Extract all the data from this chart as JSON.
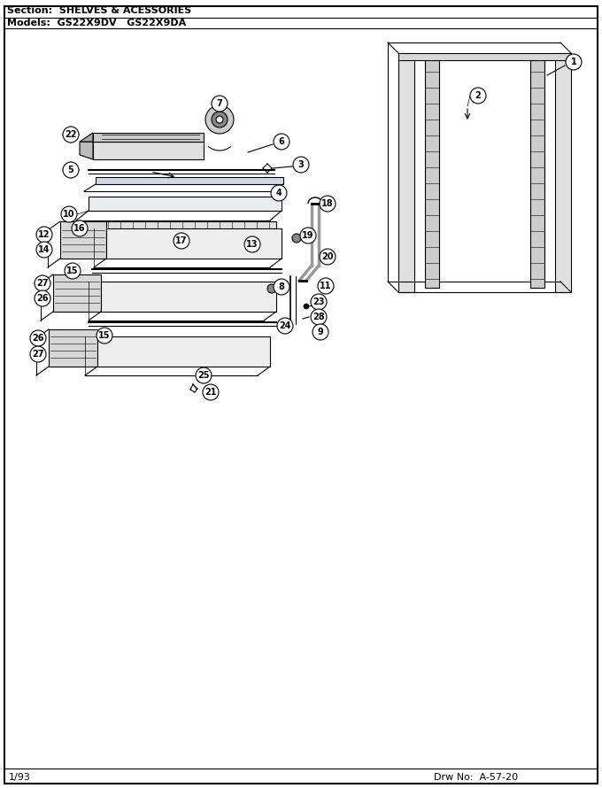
{
  "section_text": "Section:  SHELVES & ACESSORIES",
  "models_text": "Models:  GS22X9DV   GS22X9DA",
  "date_text": "1/93",
  "drw_text": "Drw No:  A-57-20",
  "bg_color": "#ffffff",
  "border_color": "#000000",
  "line_color": "#000000"
}
